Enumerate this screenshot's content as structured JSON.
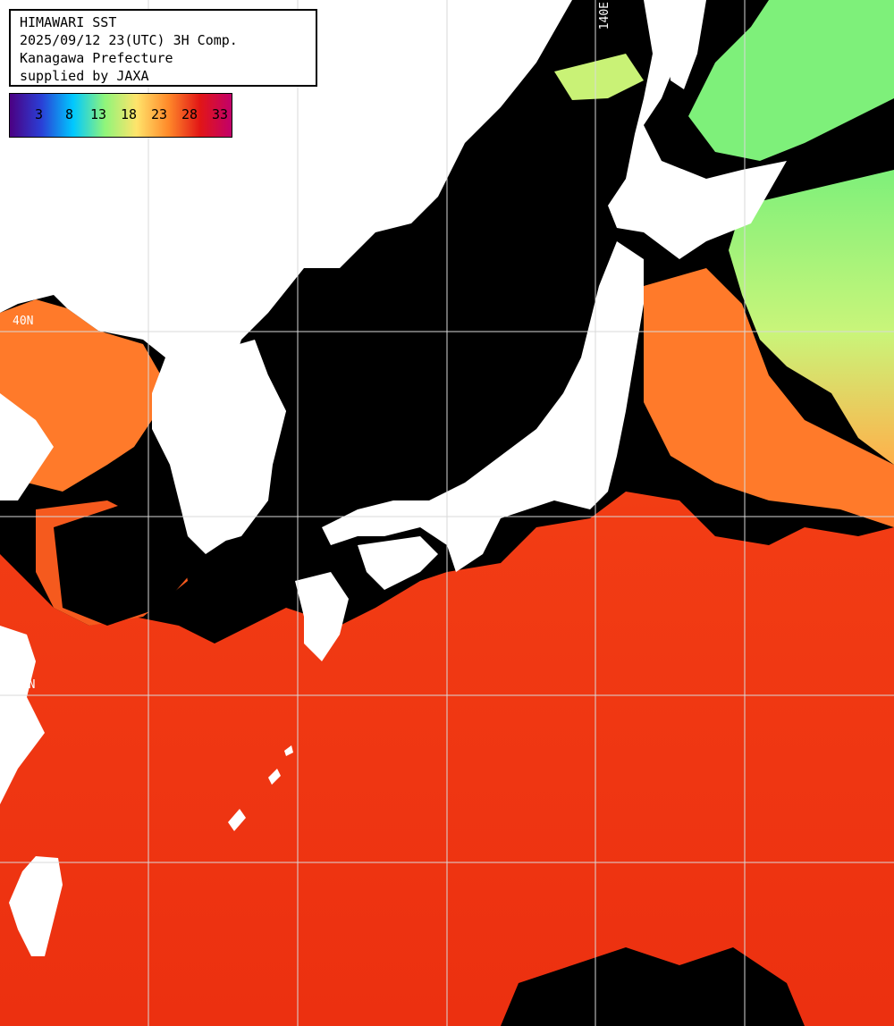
{
  "title": {
    "line1": "HIMAWARI SST",
    "line2": "2025/09/12 23(UTC) 3H Comp.",
    "line3": "Kanagawa Prefecture",
    "line4": "supplied by JAXA"
  },
  "legend": {
    "ticks": [
      "3",
      "8",
      "13",
      "18",
      "23",
      "28",
      "33"
    ],
    "colors": [
      "#4b0082",
      "#2a3fd6",
      "#00c8ff",
      "#8ff57a",
      "#ffe46b",
      "#ff8a2a",
      "#e21616",
      "#c2006a"
    ]
  },
  "grid": {
    "lon_label": "140E",
    "lat_label_40": "40N",
    "lat_label_30": "30N"
  },
  "colors": {
    "sea_warm": "#f03512",
    "sea_mid": "#ff7a2a",
    "sea_cool": "#9cf27a",
    "land": "#ffffff",
    "cloud": "#000000",
    "grid": "#d9d9d9"
  }
}
